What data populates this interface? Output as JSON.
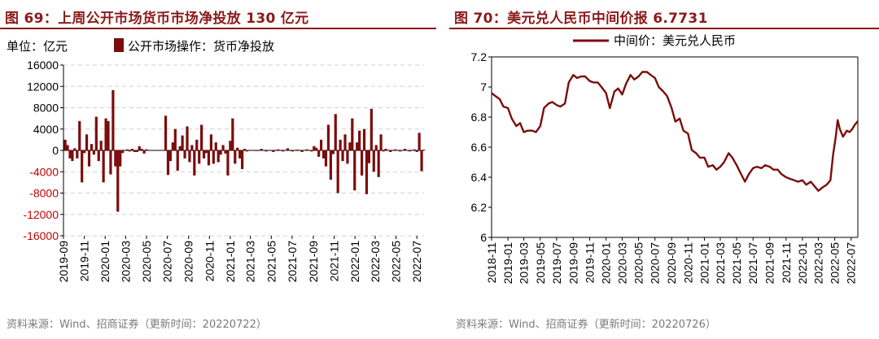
{
  "left": {
    "title": "图 69：上周公开市场货币市场净投放 130 亿元",
    "unit_label": "单位：亿元",
    "legend": "公开市场操作：货币净投放",
    "source": "资料来源：Wind、招商证券（更新时间：20220722）"
  },
  "right": {
    "title": "图 70：美元兑人民币中间价报 6.7731",
    "legend": "中间价：美元兑人民币",
    "source": "资料来源：Wind、招商证券（更新时间：20220726）"
  },
  "colors": {
    "accent": "#8B1A1A",
    "series": "#7B0D0D",
    "negative_tick": "#C00000",
    "grid": "#d0d0d0"
  },
  "chart_data": [
    {
      "type": "bar",
      "title": "上周公开市场货币市场净投放 130 亿元",
      "ylabel": "亿元",
      "ylim": [
        -16000,
        16000
      ],
      "yticks": [
        16000,
        12000,
        8000,
        4000,
        0,
        -4000,
        -8000,
        -12000,
        -16000
      ],
      "xlim": [
        "2019-09-01",
        "2022-07-22"
      ],
      "xticks": [
        "2019-09",
        "2019-11",
        "2020-01",
        "2020-03",
        "2020-05",
        "2020-07",
        "2020-09",
        "2020-11",
        "2021-01",
        "2021-03",
        "2021-05",
        "2021-07",
        "2021-09",
        "2021-11",
        "2022-01",
        "2022-03",
        "2022-05",
        "2022-07"
      ],
      "grid": true,
      "series": [
        {
          "name": "公开市场操作：货币净投放",
          "points": [
            [
              "2019-09-06",
              2000
            ],
            [
              "2019-09-13",
              1000
            ],
            [
              "2019-09-20",
              -1500
            ],
            [
              "2019-09-27",
              -2000
            ],
            [
              "2019-10-04",
              400
            ],
            [
              "2019-10-11",
              -1500
            ],
            [
              "2019-10-18",
              5500
            ],
            [
              "2019-10-25",
              -6000
            ],
            [
              "2019-11-01",
              -500
            ],
            [
              "2019-11-08",
              3000
            ],
            [
              "2019-11-15",
              -3000
            ],
            [
              "2019-11-22",
              1200
            ],
            [
              "2019-11-29",
              -800
            ],
            [
              "2019-12-06",
              6300
            ],
            [
              "2019-12-13",
              -2000
            ],
            [
              "2019-12-20",
              1800
            ],
            [
              "2019-12-27",
              -6000
            ],
            [
              "2020-01-03",
              6000
            ],
            [
              "2020-01-10",
              5500
            ],
            [
              "2020-01-17",
              -4500
            ],
            [
              "2020-01-24",
              11300
            ],
            [
              "2020-01-31",
              -3000
            ],
            [
              "2020-02-07",
              -11500
            ],
            [
              "2020-02-14",
              -3000
            ],
            [
              "2020-02-21",
              -500
            ],
            [
              "2020-03-06",
              200
            ],
            [
              "2020-03-13",
              -200
            ],
            [
              "2020-03-20",
              300
            ],
            [
              "2020-03-27",
              -300
            ],
            [
              "2020-04-03",
              -300
            ],
            [
              "2020-04-10",
              800
            ],
            [
              "2020-04-17",
              300
            ],
            [
              "2020-04-24",
              -600
            ],
            [
              "2020-05-01",
              200
            ],
            [
              "2020-06-26",
              6500
            ],
            [
              "2020-07-03",
              -4600
            ],
            [
              "2020-07-10",
              -2000
            ],
            [
              "2020-07-17",
              1500
            ],
            [
              "2020-07-24",
              4000
            ],
            [
              "2020-07-31",
              -3800
            ],
            [
              "2020-08-07",
              800
            ],
            [
              "2020-08-14",
              2800
            ],
            [
              "2020-08-21",
              -1500
            ],
            [
              "2020-08-28",
              4500
            ],
            [
              "2020-09-04",
              -2200
            ],
            [
              "2020-09-11",
              1000
            ],
            [
              "2020-09-18",
              -4700
            ],
            [
              "2020-09-25",
              2000
            ],
            [
              "2020-10-02",
              -2500
            ],
            [
              "2020-10-09",
              4800
            ],
            [
              "2020-10-16",
              -1500
            ],
            [
              "2020-10-23",
              -500
            ],
            [
              "2020-10-30",
              -2800
            ],
            [
              "2020-11-06",
              3000
            ],
            [
              "2020-11-13",
              -2500
            ],
            [
              "2020-11-20",
              1500
            ],
            [
              "2020-11-27",
              -2200
            ],
            [
              "2020-12-04",
              -800
            ],
            [
              "2020-12-11",
              1000
            ],
            [
              "2020-12-18",
              -600
            ],
            [
              "2020-12-25",
              -4700
            ],
            [
              "2021-01-01",
              1800
            ],
            [
              "2021-01-08",
              6000
            ],
            [
              "2021-01-15",
              -2500
            ],
            [
              "2021-01-22",
              500
            ],
            [
              "2021-01-29",
              -1500
            ],
            [
              "2021-02-05",
              -3500
            ],
            [
              "2021-02-12",
              300
            ],
            [
              "2021-02-19",
              -200
            ],
            [
              "2021-03-05",
              100
            ],
            [
              "2021-03-19",
              -100
            ],
            [
              "2021-04-02",
              300
            ],
            [
              "2021-04-16",
              -200
            ],
            [
              "2021-05-07",
              -300
            ],
            [
              "2021-05-21",
              200
            ],
            [
              "2021-06-04",
              -200
            ],
            [
              "2021-06-18",
              400
            ],
            [
              "2021-07-02",
              -200
            ],
            [
              "2021-07-16",
              150
            ],
            [
              "2021-07-30",
              -300
            ],
            [
              "2021-08-13",
              200
            ],
            [
              "2021-08-27",
              -200
            ],
            [
              "2021-09-03",
              800
            ],
            [
              "2021-09-10",
              500
            ],
            [
              "2021-09-17",
              -1200
            ],
            [
              "2021-09-24",
              2000
            ],
            [
              "2021-10-01",
              -1500
            ],
            [
              "2021-10-08",
              -3000
            ],
            [
              "2021-10-15",
              4800
            ],
            [
              "2021-10-22",
              -5500
            ],
            [
              "2021-10-29",
              -700
            ],
            [
              "2021-11-05",
              6800
            ],
            [
              "2021-11-12",
              -8000
            ],
            [
              "2021-11-19",
              2000
            ],
            [
              "2021-11-26",
              -2000
            ],
            [
              "2021-12-03",
              3000
            ],
            [
              "2021-12-10",
              -2500
            ],
            [
              "2021-12-17",
              1500
            ],
            [
              "2021-12-24",
              6000
            ],
            [
              "2021-12-31",
              -7500
            ],
            [
              "2022-01-07",
              1500
            ],
            [
              "2022-01-14",
              3700
            ],
            [
              "2022-01-21",
              -4700
            ],
            [
              "2022-01-28",
              4000
            ],
            [
              "2022-02-04",
              -8200
            ],
            [
              "2022-02-11",
              -2400
            ],
            [
              "2022-02-18",
              7800
            ],
            [
              "2022-02-25",
              -4000
            ],
            [
              "2022-03-04",
              1000
            ],
            [
              "2022-03-11",
              -5000
            ],
            [
              "2022-03-18",
              3000
            ],
            [
              "2022-03-25",
              -200
            ],
            [
              "2022-04-01",
              300
            ],
            [
              "2022-04-15",
              -300
            ],
            [
              "2022-04-29",
              200
            ],
            [
              "2022-05-13",
              -200
            ],
            [
              "2022-05-27",
              300
            ],
            [
              "2022-06-10",
              -200
            ],
            [
              "2022-06-24",
              200
            ],
            [
              "2022-07-01",
              -300
            ],
            [
              "2022-07-08",
              3300
            ],
            [
              "2022-07-15",
              -3900
            ],
            [
              "2022-07-22",
              130
            ]
          ]
        }
      ]
    },
    {
      "type": "line",
      "title": "美元兑人民币中间价报 6.7731",
      "ylim": [
        6.0,
        7.2
      ],
      "yticks": [
        7.2,
        7.0,
        6.8,
        6.6,
        6.4,
        6.2,
        6.0
      ],
      "xlim": [
        "2018-11-01",
        "2022-07-26"
      ],
      "xticks": [
        "2018-11",
        "2019-01",
        "2019-03",
        "2019-05",
        "2019-07",
        "2019-09",
        "2019-11",
        "2020-01",
        "2020-03",
        "2020-05",
        "2020-07",
        "2020-09",
        "2020-11",
        "2021-01",
        "2021-03",
        "2021-05",
        "2021-07",
        "2021-09",
        "2021-11",
        "2022-01",
        "2022-03",
        "2022-05",
        "2022-07"
      ],
      "grid": true,
      "series": [
        {
          "name": "中间价：美元兑人民币",
          "points": [
            [
              "2018-11-01",
              6.96
            ],
            [
              "2018-11-15",
              6.94
            ],
            [
              "2018-12-01",
              6.92
            ],
            [
              "2018-12-15",
              6.87
            ],
            [
              "2019-01-01",
              6.86
            ],
            [
              "2019-01-15",
              6.79
            ],
            [
              "2019-02-01",
              6.74
            ],
            [
              "2019-02-15",
              6.76
            ],
            [
              "2019-03-01",
              6.7
            ],
            [
              "2019-03-15",
              6.71
            ],
            [
              "2019-04-01",
              6.71
            ],
            [
              "2019-04-15",
              6.7
            ],
            [
              "2019-05-01",
              6.74
            ],
            [
              "2019-05-15",
              6.86
            ],
            [
              "2019-06-01",
              6.89
            ],
            [
              "2019-06-15",
              6.9
            ],
            [
              "2019-07-01",
              6.88
            ],
            [
              "2019-07-15",
              6.87
            ],
            [
              "2019-08-01",
              6.89
            ],
            [
              "2019-08-15",
              7.03
            ],
            [
              "2019-09-01",
              7.08
            ],
            [
              "2019-09-15",
              7.06
            ],
            [
              "2019-10-01",
              7.07
            ],
            [
              "2019-10-15",
              7.07
            ],
            [
              "2019-11-01",
              7.04
            ],
            [
              "2019-11-15",
              7.03
            ],
            [
              "2019-12-01",
              7.03
            ],
            [
              "2019-12-15",
              7.0
            ],
            [
              "2020-01-01",
              6.96
            ],
            [
              "2020-01-15",
              6.86
            ],
            [
              "2020-02-01",
              6.97
            ],
            [
              "2020-02-15",
              6.99
            ],
            [
              "2020-03-01",
              6.95
            ],
            [
              "2020-03-15",
              7.02
            ],
            [
              "2020-04-01",
              7.08
            ],
            [
              "2020-04-15",
              7.05
            ],
            [
              "2020-05-01",
              7.07
            ],
            [
              "2020-05-15",
              7.1
            ],
            [
              "2020-06-01",
              7.1
            ],
            [
              "2020-06-15",
              7.08
            ],
            [
              "2020-07-01",
              7.06
            ],
            [
              "2020-07-15",
              7.0
            ],
            [
              "2020-08-01",
              6.97
            ],
            [
              "2020-08-15",
              6.94
            ],
            [
              "2020-09-01",
              6.86
            ],
            [
              "2020-09-15",
              6.77
            ],
            [
              "2020-10-01",
              6.79
            ],
            [
              "2020-10-15",
              6.71
            ],
            [
              "2020-11-01",
              6.69
            ],
            [
              "2020-11-15",
              6.58
            ],
            [
              "2020-12-01",
              6.56
            ],
            [
              "2020-12-15",
              6.53
            ],
            [
              "2021-01-01",
              6.53
            ],
            [
              "2021-01-15",
              6.47
            ],
            [
              "2021-02-01",
              6.48
            ],
            [
              "2021-02-15",
              6.45
            ],
            [
              "2021-03-01",
              6.47
            ],
            [
              "2021-03-15",
              6.5
            ],
            [
              "2021-04-01",
              6.56
            ],
            [
              "2021-04-15",
              6.53
            ],
            [
              "2021-05-01",
              6.48
            ],
            [
              "2021-05-15",
              6.43
            ],
            [
              "2021-06-01",
              6.37
            ],
            [
              "2021-06-15",
              6.42
            ],
            [
              "2021-07-01",
              6.46
            ],
            [
              "2021-07-15",
              6.47
            ],
            [
              "2021-08-01",
              6.46
            ],
            [
              "2021-08-15",
              6.48
            ],
            [
              "2021-09-01",
              6.47
            ],
            [
              "2021-09-15",
              6.45
            ],
            [
              "2021-10-01",
              6.45
            ],
            [
              "2021-10-15",
              6.42
            ],
            [
              "2021-11-01",
              6.4
            ],
            [
              "2021-11-15",
              6.39
            ],
            [
              "2021-12-01",
              6.38
            ],
            [
              "2021-12-15",
              6.37
            ],
            [
              "2022-01-01",
              6.38
            ],
            [
              "2022-01-15",
              6.35
            ],
            [
              "2022-02-01",
              6.37
            ],
            [
              "2022-02-15",
              6.34
            ],
            [
              "2022-03-01",
              6.31
            ],
            [
              "2022-03-15",
              6.33
            ],
            [
              "2022-04-01",
              6.35
            ],
            [
              "2022-04-15",
              6.38
            ],
            [
              "2022-04-25",
              6.55
            ],
            [
              "2022-05-05",
              6.67
            ],
            [
              "2022-05-12",
              6.78
            ],
            [
              "2022-05-20",
              6.72
            ],
            [
              "2022-06-01",
              6.67
            ],
            [
              "2022-06-15",
              6.71
            ],
            [
              "2022-06-25",
              6.7
            ],
            [
              "2022-07-05",
              6.72
            ],
            [
              "2022-07-15",
              6.75
            ],
            [
              "2022-07-26",
              6.7731
            ]
          ]
        }
      ]
    }
  ]
}
